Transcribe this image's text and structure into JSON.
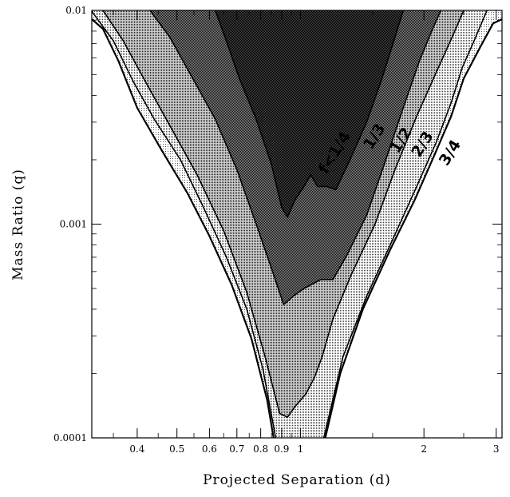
{
  "chart_data": {
    "type": "area",
    "title": "",
    "xlabel": "Projected Separation (d)",
    "ylabel": "Mass Ratio (q)",
    "xscale": "log",
    "yscale": "log",
    "xlim": [
      0.31,
      3.1
    ],
    "ylim": [
      0.0001,
      0.01
    ],
    "x_ticks": [
      {
        "value": 0.4,
        "label": "0.4"
      },
      {
        "value": 0.5,
        "label": "0.5"
      },
      {
        "value": 0.6,
        "label": "0.6"
      },
      {
        "value": 0.7,
        "label": "0.7"
      },
      {
        "value": 0.8,
        "label": "0.8"
      },
      {
        "value": 0.9,
        "label": "0.9"
      },
      {
        "value": 1,
        "label": "1"
      },
      {
        "value": 2,
        "label": "2"
      },
      {
        "value": 3,
        "label": "3"
      }
    ],
    "y_ticks": [
      {
        "value": 0.0001,
        "label": "0.0001"
      },
      {
        "value": 0.001,
        "label": "0.001"
      },
      {
        "value": 0.01,
        "label": "0.01"
      }
    ],
    "grid": false,
    "legend": "none",
    "series": [
      {
        "name": "3/4",
        "fill": "#f2f2f2",
        "left": [
          [
            0.31,
            0.0091
          ],
          [
            0.33,
            0.0082
          ],
          [
            0.36,
            0.0058
          ],
          [
            0.4,
            0.0035
          ],
          [
            0.46,
            0.0022
          ],
          [
            0.53,
            0.0014
          ],
          [
            0.6,
            0.00088
          ],
          [
            0.68,
            0.00052
          ],
          [
            0.76,
            0.00029
          ],
          [
            0.83,
            0.00015
          ],
          [
            0.86,
            0.0001
          ]
        ],
        "right": [
          [
            3.1,
            0.0091
          ],
          [
            2.95,
            0.0087
          ],
          [
            2.75,
            0.0068
          ],
          [
            2.5,
            0.0048
          ],
          [
            2.33,
            0.0032
          ],
          [
            2.12,
            0.0021
          ],
          [
            1.9,
            0.0013
          ],
          [
            1.65,
            0.00075
          ],
          [
            1.42,
            0.0004
          ],
          [
            1.25,
            0.0002
          ],
          [
            1.15,
            0.0001
          ]
        ]
      },
      {
        "name": "2/3",
        "fill": "#e0e0e0",
        "left": [
          [
            0.31,
            0.0099
          ],
          [
            0.35,
            0.0072
          ],
          [
            0.39,
            0.0047
          ],
          [
            0.44,
            0.0031
          ],
          [
            0.51,
            0.002
          ],
          [
            0.58,
            0.0012
          ],
          [
            0.66,
            0.0007
          ],
          [
            0.74,
            0.0004
          ],
          [
            0.81,
            0.00021
          ],
          [
            0.87,
            0.0001
          ]
        ],
        "right": [
          [
            2.85,
            0.01
          ],
          [
            2.65,
            0.0072
          ],
          [
            2.48,
            0.0054
          ],
          [
            2.33,
            0.0037
          ],
          [
            2.14,
            0.0024
          ],
          [
            1.92,
            0.0015
          ],
          [
            1.68,
            0.00085
          ],
          [
            1.45,
            0.00046
          ],
          [
            1.27,
            0.00024
          ],
          [
            1.14,
            0.0001
          ]
        ]
      },
      {
        "name": "1/2",
        "fill": "#c6c6c6",
        "left": [
          [
            0.33,
            0.01
          ],
          [
            0.37,
            0.0072
          ],
          [
            0.42,
            0.0046
          ],
          [
            0.48,
            0.0029
          ],
          [
            0.56,
            0.0017
          ],
          [
            0.65,
            0.00093
          ],
          [
            0.74,
            0.00048
          ],
          [
            0.82,
            0.00024
          ],
          [
            0.89,
            0.00013
          ],
          [
            0.93,
            0.000125
          ],
          [
            0.97,
            0.00014
          ],
          [
            1.03,
            0.00016
          ],
          [
            1.08,
            0.00019
          ],
          [
            1.13,
            0.00024
          ],
          [
            1.2,
            0.00036
          ],
          [
            1.33,
            0.00058
          ],
          [
            1.52,
            0.001
          ],
          [
            1.7,
            0.0018
          ],
          [
            1.92,
            0.0032
          ],
          [
            2.15,
            0.0052
          ],
          [
            2.35,
            0.0076
          ],
          [
            2.5,
            0.01
          ]
        ]
      },
      {
        "name": "1/3",
        "fill": "#9a9a9a",
        "left": [
          [
            0.43,
            0.01
          ],
          [
            0.48,
            0.0075
          ],
          [
            0.54,
            0.005
          ],
          [
            0.62,
            0.0031
          ],
          [
            0.7,
            0.0018
          ],
          [
            0.78,
            0.001
          ],
          [
            0.85,
            0.00062
          ],
          [
            0.91,
            0.00042
          ],
          [
            0.96,
            0.00046
          ],
          [
            1.02,
            0.0005
          ],
          [
            1.06,
            0.00052
          ],
          [
            1.12,
            0.00055
          ],
          [
            1.2,
            0.00055
          ],
          [
            1.3,
            0.00072
          ],
          [
            1.45,
            0.0011
          ],
          [
            1.6,
            0.0019
          ],
          [
            1.78,
            0.0035
          ],
          [
            1.95,
            0.0058
          ],
          [
            2.1,
            0.0082
          ],
          [
            2.2,
            0.01
          ]
        ]
      },
      {
        "name": "f<1/4",
        "fill": "#5e5e5e",
        "left": [
          [
            0.62,
            0.01
          ],
          [
            0.66,
            0.0072
          ],
          [
            0.71,
            0.0048
          ],
          [
            0.78,
            0.0031
          ],
          [
            0.85,
            0.0019
          ],
          [
            0.9,
            0.0012
          ],
          [
            0.93,
            0.00108
          ],
          [
            0.97,
            0.0013
          ],
          [
            1.02,
            0.0015
          ],
          [
            1.06,
            0.0017
          ],
          [
            1.1,
            0.0015
          ],
          [
            1.16,
            0.0015
          ],
          [
            1.22,
            0.00145
          ],
          [
            1.32,
            0.002
          ],
          [
            1.45,
            0.003
          ],
          [
            1.58,
            0.0048
          ],
          [
            1.7,
            0.0075
          ],
          [
            1.78,
            0.01
          ]
        ]
      }
    ],
    "annotations": [
      {
        "text": "f<1/4",
        "x": 1.24,
        "y": 0.0021
      },
      {
        "text": "1/3",
        "x": 1.55,
        "y": 0.0025
      },
      {
        "text": "1/2",
        "x": 1.8,
        "y": 0.0024
      },
      {
        "text": "2/3",
        "x": 2.03,
        "y": 0.0023
      },
      {
        "text": "3/4",
        "x": 2.37,
        "y": 0.0021
      }
    ]
  }
}
